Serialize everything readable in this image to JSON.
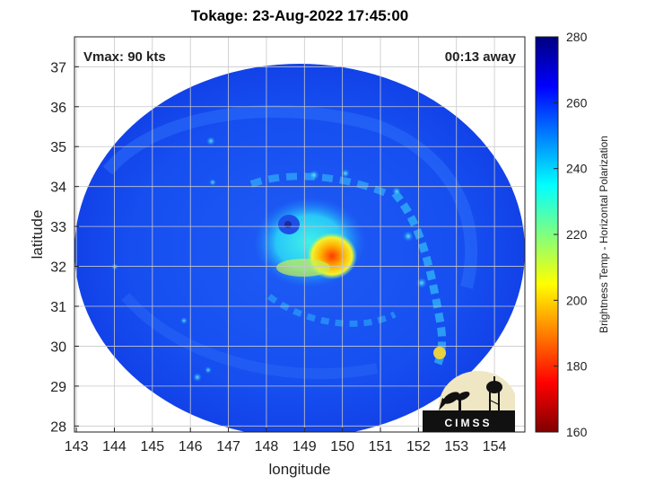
{
  "title": "Tokage: 23-Aug-2022 17:45:00",
  "annotations": {
    "vmax": "Vmax: 90 kts",
    "time_away": "00:13 away"
  },
  "axes": {
    "xlabel": "longitude",
    "ylabel": "latitude",
    "xticks": [
      143,
      144,
      145,
      146,
      147,
      148,
      149,
      150,
      151,
      152,
      153,
      154
    ],
    "yticks": [
      28,
      29,
      30,
      31,
      32,
      33,
      34,
      35,
      36,
      37
    ],
    "xlim": [
      142.95,
      154.8
    ],
    "ylim": [
      27.85,
      37.75
    ],
    "grid": true
  },
  "colorbar": {
    "label": "Brightness Temp - Horizontal Polarization",
    "min": 160,
    "max": 280,
    "ticks": [
      160,
      180,
      200,
      220,
      240,
      260,
      280
    ],
    "colormap": "jet"
  },
  "logo": {
    "text": "CIMSS"
  },
  "storm": {
    "eye_lon": 148.3,
    "eye_lat": 33.1
  }
}
